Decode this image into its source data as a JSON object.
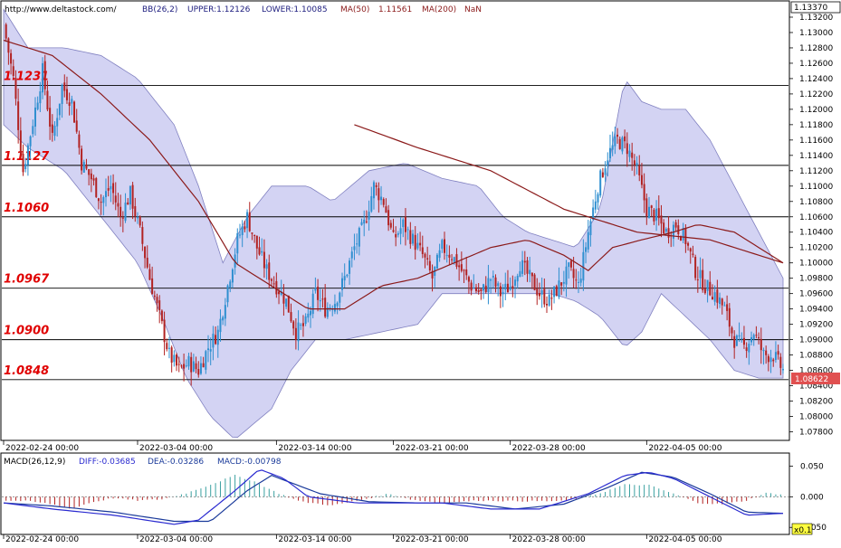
{
  "header": {
    "url": "http://www.deltastock.com/",
    "bb": "BB(26,2)",
    "upper": "UPPER:1.12126",
    "lower": "LOWER:1.10085",
    "ma50_label": "MA(50)",
    "ma50_value": "1.11561",
    "ma200_label": "MA(200)",
    "ma200_value": "NaN"
  },
  "macd_header": {
    "label": "MACD(26,12,9)",
    "diff": "DIFF:-0.03685",
    "dea": "DEA:-0.03286",
    "macd": "MACD:-0.00798"
  },
  "price_tags": {
    "top": "1.13370",
    "current": "1.08622",
    "macd_zoom": "x0.1"
  },
  "colors": {
    "up": "#2f8fd0",
    "down": "#b22222",
    "band": "#c8c8f0",
    "band_edge": "#8080c0",
    "ma": "#8b1a1a",
    "level_text": "#e00000",
    "diff_line": "#2a2ad0",
    "dea_line": "#1a3a9a"
  },
  "chart_data": [
    {
      "type": "candlestick",
      "title": "",
      "x_ticks": [
        "2022-02-24 00:00",
        "2022-03-04 00:00",
        "2022-03-14 00:00",
        "2022-03-21 00:00",
        "2022-03-28 00:00",
        "2022-04-05 00:00"
      ],
      "y_ticks": [
        "1.13200",
        "1.13000",
        "1.12800",
        "1.12600",
        "1.12400",
        "1.12200",
        "1.12000",
        "1.11800",
        "1.11600",
        "1.11400",
        "1.11200",
        "1.11000",
        "1.10800",
        "1.10600",
        "1.10400",
        "1.10200",
        "1.10000",
        "1.09800",
        "1.09600",
        "1.09400",
        "1.09200",
        "1.09000",
        "1.08800",
        "1.08600",
        "1.08400",
        "1.08200",
        "1.08000",
        "1.07800"
      ],
      "ylim": [
        1.077,
        1.134
      ],
      "levels": [
        {
          "label": "1.1231",
          "value": 1.1231
        },
        {
          "label": "1.1127",
          "value": 1.1127
        },
        {
          "label": "1.1060",
          "value": 1.106
        },
        {
          "label": "1.0967",
          "value": 1.0967
        },
        {
          "label": "1.0900",
          "value": 1.09
        },
        {
          "label": "1.0848",
          "value": 1.0848
        }
      ],
      "close_path": [
        [
          0,
          1.131
        ],
        [
          4,
          1.124
        ],
        [
          8,
          1.112
        ],
        [
          13,
          1.12
        ],
        [
          16,
          1.125
        ],
        [
          20,
          1.116
        ],
        [
          24,
          1.123
        ],
        [
          28,
          1.121
        ],
        [
          32,
          1.113
        ],
        [
          36,
          1.111
        ],
        [
          40,
          1.108
        ],
        [
          44,
          1.11
        ],
        [
          48,
          1.106
        ],
        [
          52,
          1.109
        ],
        [
          56,
          1.104
        ],
        [
          60,
          1.098
        ],
        [
          64,
          1.093
        ],
        [
          68,
          1.088
        ],
        [
          72,
          1.086
        ],
        [
          76,
          1.087
        ],
        [
          80,
          1.086
        ],
        [
          84,
          1.089
        ],
        [
          88,
          1.091
        ],
        [
          92,
          1.097
        ],
        [
          96,
          1.103
        ],
        [
          100,
          1.106
        ],
        [
          104,
          1.102
        ],
        [
          108,
          1.099
        ],
        [
          112,
          1.097
        ],
        [
          116,
          1.095
        ],
        [
          120,
          1.091
        ],
        [
          124,
          1.092
        ],
        [
          128,
          1.096
        ],
        [
          132,
          1.094
        ],
        [
          136,
          1.095
        ],
        [
          140,
          1.098
        ],
        [
          144,
          1.102
        ],
        [
          148,
          1.105
        ],
        [
          152,
          1.11
        ],
        [
          156,
          1.108
        ],
        [
          160,
          1.103
        ],
        [
          164,
          1.105
        ],
        [
          168,
          1.103
        ],
        [
          172,
          1.101
        ],
        [
          176,
          1.098
        ],
        [
          180,
          1.102
        ],
        [
          184,
          1.101
        ],
        [
          188,
          1.099
        ],
        [
          192,
          1.097
        ],
        [
          196,
          1.096
        ],
        [
          200,
          1.098
        ],
        [
          204,
          1.096
        ],
        [
          208,
          1.097
        ],
        [
          212,
          1.1
        ],
        [
          216,
          1.098
        ],
        [
          220,
          1.096
        ],
        [
          224,
          1.095
        ],
        [
          228,
          1.097
        ],
        [
          232,
          1.099
        ],
        [
          236,
          1.097
        ],
        [
          240,
          1.104
        ],
        [
          244,
          1.11
        ],
        [
          248,
          1.114
        ],
        [
          252,
          1.116
        ],
        [
          256,
          1.115
        ],
        [
          260,
          1.112
        ],
        [
          264,
          1.107
        ],
        [
          268,
          1.106
        ],
        [
          272,
          1.104
        ],
        [
          276,
          1.105
        ],
        [
          280,
          1.103
        ],
        [
          284,
          1.099
        ],
        [
          288,
          1.097
        ],
        [
          292,
          1.096
        ],
        [
          296,
          1.094
        ],
        [
          300,
          1.09
        ],
        [
          304,
          1.089
        ],
        [
          308,
          1.091
        ],
        [
          312,
          1.088
        ],
        [
          316,
          1.088
        ],
        [
          320,
          1.086
        ]
      ],
      "ma_path": [
        [
          0,
          1.129
        ],
        [
          20,
          1.127
        ],
        [
          40,
          1.122
        ],
        [
          60,
          1.116
        ],
        [
          80,
          1.108
        ],
        [
          95,
          1.1
        ],
        [
          110,
          1.097
        ],
        [
          125,
          1.094
        ],
        [
          140,
          1.094
        ],
        [
          155,
          1.097
        ],
        [
          170,
          1.098
        ],
        [
          185,
          1.1
        ],
        [
          200,
          1.102
        ],
        [
          215,
          1.103
        ],
        [
          230,
          1.101
        ],
        [
          240,
          1.099
        ],
        [
          250,
          1.102
        ],
        [
          262,
          1.103
        ],
        [
          275,
          1.104
        ],
        [
          285,
          1.105
        ],
        [
          300,
          1.104
        ],
        [
          320,
          1.1
        ]
      ],
      "ma_long_path": [
        [
          144,
          1.118
        ],
        [
          170,
          1.115
        ],
        [
          200,
          1.112
        ],
        [
          230,
          1.107
        ],
        [
          260,
          1.104
        ],
        [
          290,
          1.103
        ],
        [
          320,
          1.1
        ]
      ],
      "band_upper": [
        [
          0,
          1.133
        ],
        [
          10,
          1.128
        ],
        [
          25,
          1.128
        ],
        [
          40,
          1.127
        ],
        [
          55,
          1.124
        ],
        [
          70,
          1.118
        ],
        [
          80,
          1.11
        ],
        [
          90,
          1.1
        ],
        [
          100,
          1.106
        ],
        [
          110,
          1.11
        ],
        [
          125,
          1.11
        ],
        [
          135,
          1.108
        ],
        [
          150,
          1.112
        ],
        [
          165,
          1.113
        ],
        [
          180,
          1.111
        ],
        [
          195,
          1.11
        ],
        [
          205,
          1.106
        ],
        [
          215,
          1.104
        ],
        [
          225,
          1.103
        ],
        [
          235,
          1.102
        ],
        [
          245,
          1.107
        ],
        [
          255,
          1.124
        ],
        [
          262,
          1.121
        ],
        [
          270,
          1.12
        ],
        [
          280,
          1.12
        ],
        [
          290,
          1.116
        ],
        [
          300,
          1.11
        ],
        [
          310,
          1.104
        ],
        [
          320,
          1.098
        ]
      ],
      "band_lower": [
        [
          0,
          1.118
        ],
        [
          10,
          1.115
        ],
        [
          25,
          1.112
        ],
        [
          40,
          1.106
        ],
        [
          55,
          1.1
        ],
        [
          65,
          1.093
        ],
        [
          75,
          1.085
        ],
        [
          85,
          1.08
        ],
        [
          95,
          1.077
        ],
        [
          110,
          1.081
        ],
        [
          118,
          1.086
        ],
        [
          128,
          1.09
        ],
        [
          140,
          1.09
        ],
        [
          155,
          1.091
        ],
        [
          170,
          1.092
        ],
        [
          180,
          1.096
        ],
        [
          195,
          1.096
        ],
        [
          210,
          1.096
        ],
        [
          225,
          1.096
        ],
        [
          235,
          1.095
        ],
        [
          245,
          1.093
        ],
        [
          255,
          1.089
        ],
        [
          262,
          1.091
        ],
        [
          270,
          1.096
        ],
        [
          280,
          1.093
        ],
        [
          290,
          1.09
        ],
        [
          300,
          1.086
        ],
        [
          310,
          1.085
        ],
        [
          320,
          1.085
        ]
      ]
    },
    {
      "type": "bar+line",
      "title": "",
      "y_ticks": [
        "0.050",
        "0.000",
        "-0.050"
      ],
      "ylim": [
        -0.06,
        0.07
      ],
      "hist_path": [
        [
          0,
          -0.006
        ],
        [
          10,
          -0.007
        ],
        [
          20,
          -0.012
        ],
        [
          28,
          -0.02
        ],
        [
          35,
          -0.01
        ],
        [
          45,
          -0.002
        ],
        [
          55,
          -0.006
        ],
        [
          65,
          -0.004
        ],
        [
          75,
          0.006
        ],
        [
          85,
          0.02
        ],
        [
          95,
          0.035
        ],
        [
          103,
          0.025
        ],
        [
          112,
          0.007
        ],
        [
          122,
          -0.008
        ],
        [
          135,
          -0.014
        ],
        [
          148,
          -0.004
        ],
        [
          158,
          0.005
        ],
        [
          168,
          -0.005
        ],
        [
          180,
          -0.01
        ],
        [
          195,
          -0.006
        ],
        [
          210,
          -0.007
        ],
        [
          230,
          -0.007
        ],
        [
          245,
          0.006
        ],
        [
          255,
          0.02
        ],
        [
          265,
          0.019
        ],
        [
          275,
          0.005
        ],
        [
          285,
          -0.01
        ],
        [
          295,
          -0.012
        ],
        [
          305,
          -0.006
        ],
        [
          313,
          0.006
        ],
        [
          320,
          0.004
        ]
      ],
      "diff_path": [
        [
          0,
          -0.01
        ],
        [
          20,
          -0.02
        ],
        [
          45,
          -0.03
        ],
        [
          70,
          -0.045
        ],
        [
          80,
          -0.038
        ],
        [
          95,
          0.01
        ],
        [
          105,
          0.045
        ],
        [
          115,
          0.03
        ],
        [
          125,
          0.0
        ],
        [
          145,
          -0.01
        ],
        [
          160,
          -0.01
        ],
        [
          180,
          -0.01
        ],
        [
          200,
          -0.02
        ],
        [
          220,
          -0.02
        ],
        [
          240,
          0.005
        ],
        [
          255,
          0.035
        ],
        [
          265,
          0.04
        ],
        [
          275,
          0.03
        ],
        [
          290,
          0.0
        ],
        [
          305,
          -0.03
        ],
        [
          320,
          -0.027
        ]
      ],
      "dea_path": [
        [
          0,
          -0.01
        ],
        [
          20,
          -0.015
        ],
        [
          45,
          -0.025
        ],
        [
          70,
          -0.04
        ],
        [
          85,
          -0.04
        ],
        [
          100,
          0.01
        ],
        [
          110,
          0.035
        ],
        [
          120,
          0.02
        ],
        [
          130,
          0.005
        ],
        [
          150,
          -0.008
        ],
        [
          170,
          -0.01
        ],
        [
          190,
          -0.01
        ],
        [
          210,
          -0.02
        ],
        [
          230,
          -0.012
        ],
        [
          248,
          0.015
        ],
        [
          262,
          0.04
        ],
        [
          275,
          0.032
        ],
        [
          290,
          0.005
        ],
        [
          305,
          -0.025
        ],
        [
          320,
          -0.027
        ]
      ]
    }
  ]
}
